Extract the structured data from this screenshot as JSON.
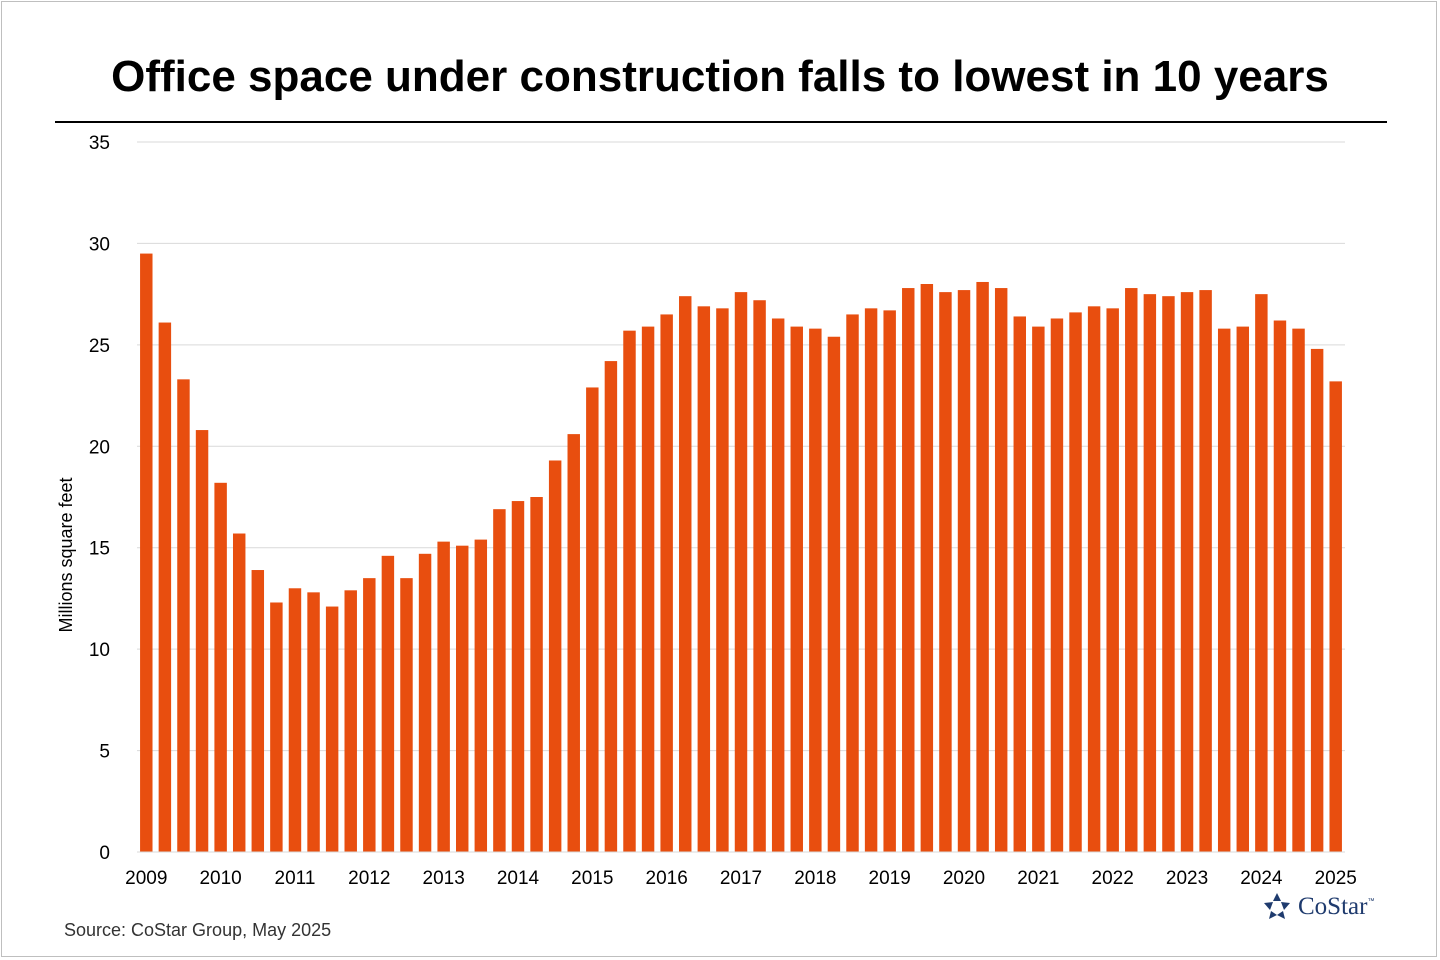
{
  "chart_data": {
    "type": "bar",
    "title": "Office space under construction falls to lowest in 10 years",
    "ylabel": "Millions square feet",
    "xlabel": "",
    "ylim": [
      0,
      35
    ],
    "yticks": [
      0,
      5,
      10,
      15,
      20,
      25,
      30,
      35
    ],
    "x_tick_labels": [
      "2009",
      "2010",
      "2011",
      "2012",
      "2013",
      "2014",
      "2015",
      "2016",
      "2017",
      "2018",
      "2019",
      "2020",
      "2021",
      "2022",
      "2023",
      "2024",
      "2025"
    ],
    "values": [
      29.5,
      26.1,
      23.3,
      20.8,
      18.2,
      15.7,
      13.9,
      12.3,
      13.0,
      12.8,
      12.1,
      12.9,
      13.5,
      14.6,
      13.5,
      14.7,
      15.3,
      15.1,
      15.4,
      16.9,
      17.3,
      17.5,
      19.3,
      20.6,
      22.9,
      24.2,
      25.7,
      25.9,
      26.5,
      27.4,
      26.9,
      26.8,
      27.6,
      27.2,
      26.3,
      25.9,
      25.8,
      25.4,
      26.5,
      26.8,
      26.7,
      27.8,
      28.0,
      27.6,
      27.7,
      28.1,
      27.8,
      26.4,
      25.9,
      26.3,
      26.6,
      26.9,
      26.8,
      27.8,
      27.5,
      27.4,
      27.6,
      27.7,
      25.8,
      25.9,
      27.5,
      26.2,
      25.8,
      24.8,
      23.2
    ],
    "bar_color": "#E84E0F",
    "grid": true,
    "grid_color": "#d9d9d9",
    "legend": "none"
  },
  "source": "Source: CoStar Group, May 2025",
  "logo": {
    "icon": "costar-star-icon",
    "name": "CoStar",
    "tm": "™",
    "color": "#1f3b6e"
  }
}
